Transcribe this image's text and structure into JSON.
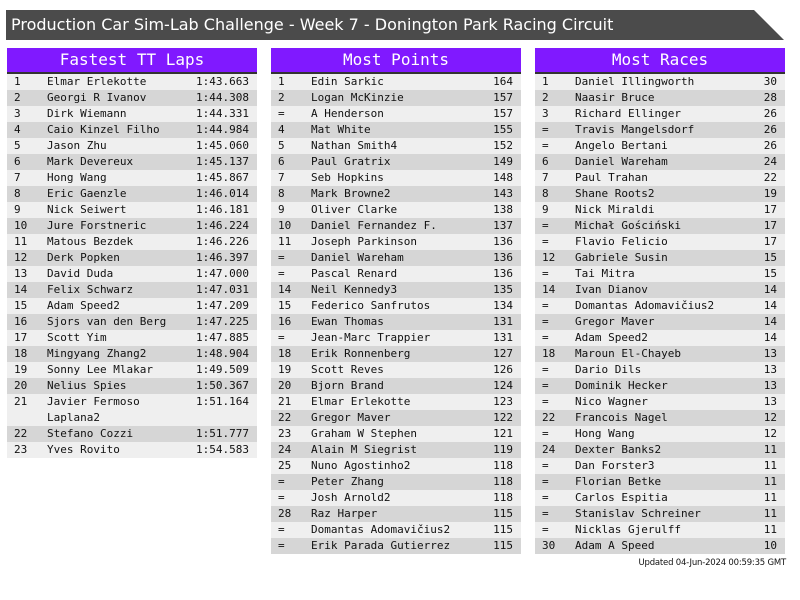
{
  "title": "Production Car Sim-Lab Challenge - Week 7 - Donington Park Racing Circuit",
  "colors": {
    "header_bg": "#8019ff",
    "title_bg": "#4b4b4b",
    "row_light": "#efefef",
    "row_dark": "#d6d6d6"
  },
  "panels": [
    {
      "title": "Fastest TT Laps",
      "rows": [
        [
          "1",
          "Elmar Erlekotte",
          "1:43.663"
        ],
        [
          "2",
          "Georgi R Ivanov",
          "1:44.308"
        ],
        [
          "3",
          "Dirk Wiemann",
          "1:44.331"
        ],
        [
          "4",
          "Caio Kinzel Filho",
          "1:44.984"
        ],
        [
          "5",
          "Jason Zhu",
          "1:45.060"
        ],
        [
          "6",
          "Mark Devereux",
          "1:45.137"
        ],
        [
          "7",
          "Hong Wang",
          "1:45.867"
        ],
        [
          "8",
          "Eric Gaenzle",
          "1:46.014"
        ],
        [
          "9",
          "Nick Seiwert",
          "1:46.181"
        ],
        [
          "10",
          "Jure Forstneric",
          "1:46.224"
        ],
        [
          "11",
          "Matous Bezdek",
          "1:46.226"
        ],
        [
          "12",
          "Derk Popken",
          "1:46.397"
        ],
        [
          "13",
          "David Duda",
          "1:47.000"
        ],
        [
          "14",
          "Felix Schwarz",
          "1:47.031"
        ],
        [
          "15",
          "Adam Speed2",
          "1:47.209"
        ],
        [
          "16",
          "Sjors van den Berg",
          "1:47.225"
        ],
        [
          "17",
          "Scott Yim",
          "1:47.885"
        ],
        [
          "18",
          "Mingyang Zhang2",
          "1:48.904"
        ],
        [
          "19",
          "Sonny Lee Mlakar",
          "1:49.509"
        ],
        [
          "20",
          "Nelius Spies",
          "1:50.367"
        ],
        [
          "21",
          "Javier Fermoso Laplana2",
          "1:51.164"
        ],
        [
          "22",
          "Stefano Cozzi",
          "1:51.777"
        ],
        [
          "23",
          "Yves Rovito",
          "1:54.583"
        ]
      ]
    },
    {
      "title": "Most Points",
      "rows": [
        [
          "1",
          "Edin Sarkic",
          "164"
        ],
        [
          "2",
          "Logan McKinzie",
          "157"
        ],
        [
          "=",
          "A Henderson",
          "157"
        ],
        [
          "4",
          "Mat White",
          "155"
        ],
        [
          "5",
          "Nathan Smith4",
          "152"
        ],
        [
          "6",
          "Paul Gratrix",
          "149"
        ],
        [
          "7",
          "Seb Hopkins",
          "148"
        ],
        [
          "8",
          "Mark Browne2",
          "143"
        ],
        [
          "9",
          "Oliver Clarke",
          "138"
        ],
        [
          "10",
          "Daniel Fernandez F.",
          "137"
        ],
        [
          "11",
          "Joseph Parkinson",
          "136"
        ],
        [
          "=",
          "Daniel Wareham",
          "136"
        ],
        [
          "=",
          "Pascal Renard",
          "136"
        ],
        [
          "14",
          "Neil Kennedy3",
          "135"
        ],
        [
          "15",
          "Federico Sanfrutos",
          "134"
        ],
        [
          "16",
          "Ewan Thomas",
          "131"
        ],
        [
          "=",
          "Jean-Marc Trappier",
          "131"
        ],
        [
          "18",
          "Erik Ronnenberg",
          "127"
        ],
        [
          "19",
          "Scott Reves",
          "126"
        ],
        [
          "20",
          "Bjorn Brand",
          "124"
        ],
        [
          "21",
          "Elmar Erlekotte",
          "123"
        ],
        [
          "22",
          "Gregor Maver",
          "122"
        ],
        [
          "23",
          "Graham W Stephen",
          "121"
        ],
        [
          "24",
          "Alain M Siegrist",
          "119"
        ],
        [
          "25",
          "Nuno Agostinho2",
          "118"
        ],
        [
          "=",
          "Peter Zhang",
          "118"
        ],
        [
          "=",
          "Josh Arnold2",
          "118"
        ],
        [
          "28",
          "Raz Harper",
          "115"
        ],
        [
          "=",
          "Domantas Adomavičius2",
          "115"
        ],
        [
          "=",
          "Erik Parada Gutierrez",
          "115"
        ]
      ]
    },
    {
      "title": "Most Races",
      "rows": [
        [
          "1",
          "Daniel Illingworth",
          "30"
        ],
        [
          "2",
          "Naasir Bruce",
          "28"
        ],
        [
          "3",
          "Richard Ellinger",
          "26"
        ],
        [
          "=",
          "Travis Mangelsdorf",
          "26"
        ],
        [
          "=",
          "Angelo Bertani",
          "26"
        ],
        [
          "6",
          "Daniel Wareham",
          "24"
        ],
        [
          "7",
          "Paul Trahan",
          "22"
        ],
        [
          "8",
          "Shane Roots2",
          "19"
        ],
        [
          "9",
          "Nick Miraldi",
          "17"
        ],
        [
          "=",
          "Michał Gościński",
          "17"
        ],
        [
          "=",
          "Flavio Felicio",
          "17"
        ],
        [
          "12",
          "Gabriele Susin",
          "15"
        ],
        [
          "=",
          "Tai Mitra",
          "15"
        ],
        [
          "14",
          "Ivan Dianov",
          "14"
        ],
        [
          "=",
          "Domantas Adomavičius2",
          "14"
        ],
        [
          "=",
          "Gregor Maver",
          "14"
        ],
        [
          "=",
          "Adam Speed2",
          "14"
        ],
        [
          "18",
          "Maroun El-Chayeb",
          "13"
        ],
        [
          "=",
          "Dario Dils",
          "13"
        ],
        [
          "=",
          "Dominik Hecker",
          "13"
        ],
        [
          "=",
          "Nico Wagner",
          "13"
        ],
        [
          "22",
          "Francois Nagel",
          "12"
        ],
        [
          "=",
          "Hong Wang",
          "12"
        ],
        [
          "24",
          "Dexter Banks2",
          "11"
        ],
        [
          "=",
          "Dan Forster3",
          "11"
        ],
        [
          "=",
          "Florian Betke",
          "11"
        ],
        [
          "=",
          "Carlos Espitia",
          "11"
        ],
        [
          "=",
          "Stanislav Schreiner",
          "11"
        ],
        [
          "=",
          "Nicklas Gjerulff",
          "11"
        ],
        [
          "30",
          "Adam A Speed",
          "10"
        ]
      ]
    }
  ],
  "updated": "Updated 04-Jun-2024 00:59:35 GMT"
}
